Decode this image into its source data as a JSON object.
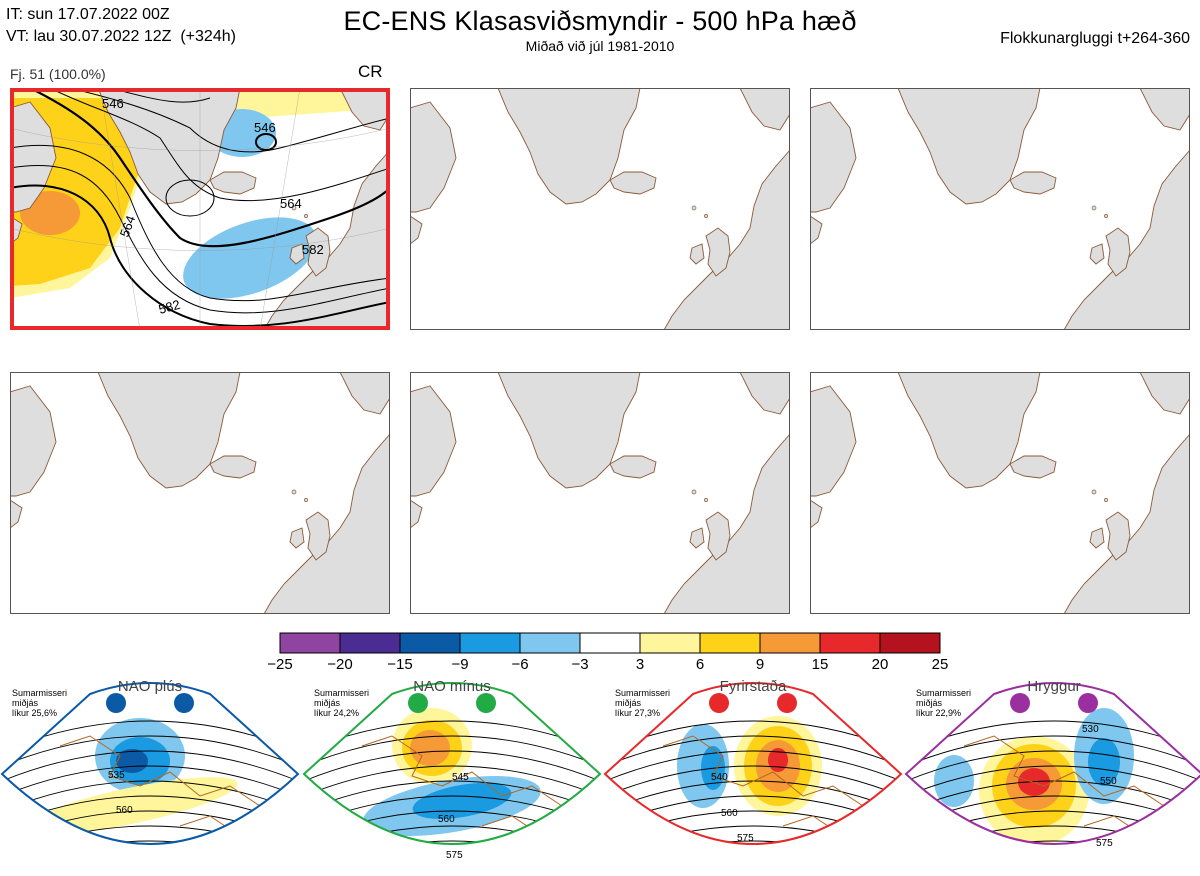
{
  "header": {
    "it_line": "IT: sun 17.07.2022 00Z",
    "vt_line": "VT: lau 30.07.2022 12Z  (+324h)",
    "title": "EC-ENS Klasasviðsmyndir - 500 hPa hæð",
    "subtitle": "Miðað við júl 1981-2010",
    "window": "Flokkunargluggi t+264-360"
  },
  "active_cluster": {
    "label": "Fj. 51 (100.0%)",
    "regime_code": "CR",
    "border_color": "#e8292b",
    "contour_labels": [
      "546",
      "546",
      "564",
      "564",
      "582",
      "582"
    ]
  },
  "colorbar": {
    "ticks": [
      "−25",
      "−20",
      "−15",
      "−9",
      "−6",
      "−3",
      "3",
      "6",
      "9",
      "15",
      "20",
      "25"
    ],
    "colors": [
      "#8e44a0",
      "#4b2c92",
      "#0a5aa6",
      "#1a9ae0",
      "#7fc7ee",
      "#ffffff",
      "#fff59a",
      "#ffd21a",
      "#f59a36",
      "#e8292b",
      "#b3121e"
    ]
  },
  "regimes": [
    {
      "title": "NAO plús",
      "note": "Sumarmisseri\nmiðjás\nlíkur 25,6%",
      "color": "#0a5aa6",
      "labels": [
        "535",
        "560"
      ]
    },
    {
      "title": "NAO mínus",
      "note": "Sumarmisseri\nmiðjás\nlíkur 24,2%",
      "color": "#22aa44",
      "labels": [
        "545",
        "560",
        "575"
      ]
    },
    {
      "title": "Fyrirstaða",
      "note": "Sumarmisseri\nmiðjás\nlíkur 27,3%",
      "color": "#e8292b",
      "labels": [
        "540",
        "560",
        "575"
      ]
    },
    {
      "title": "Hryggur",
      "note": "Sumarmisseri\nmiðjás\nlíkur 22,9%",
      "color": "#9b2fa0",
      "labels": [
        "530",
        "550",
        "575"
      ]
    }
  ]
}
